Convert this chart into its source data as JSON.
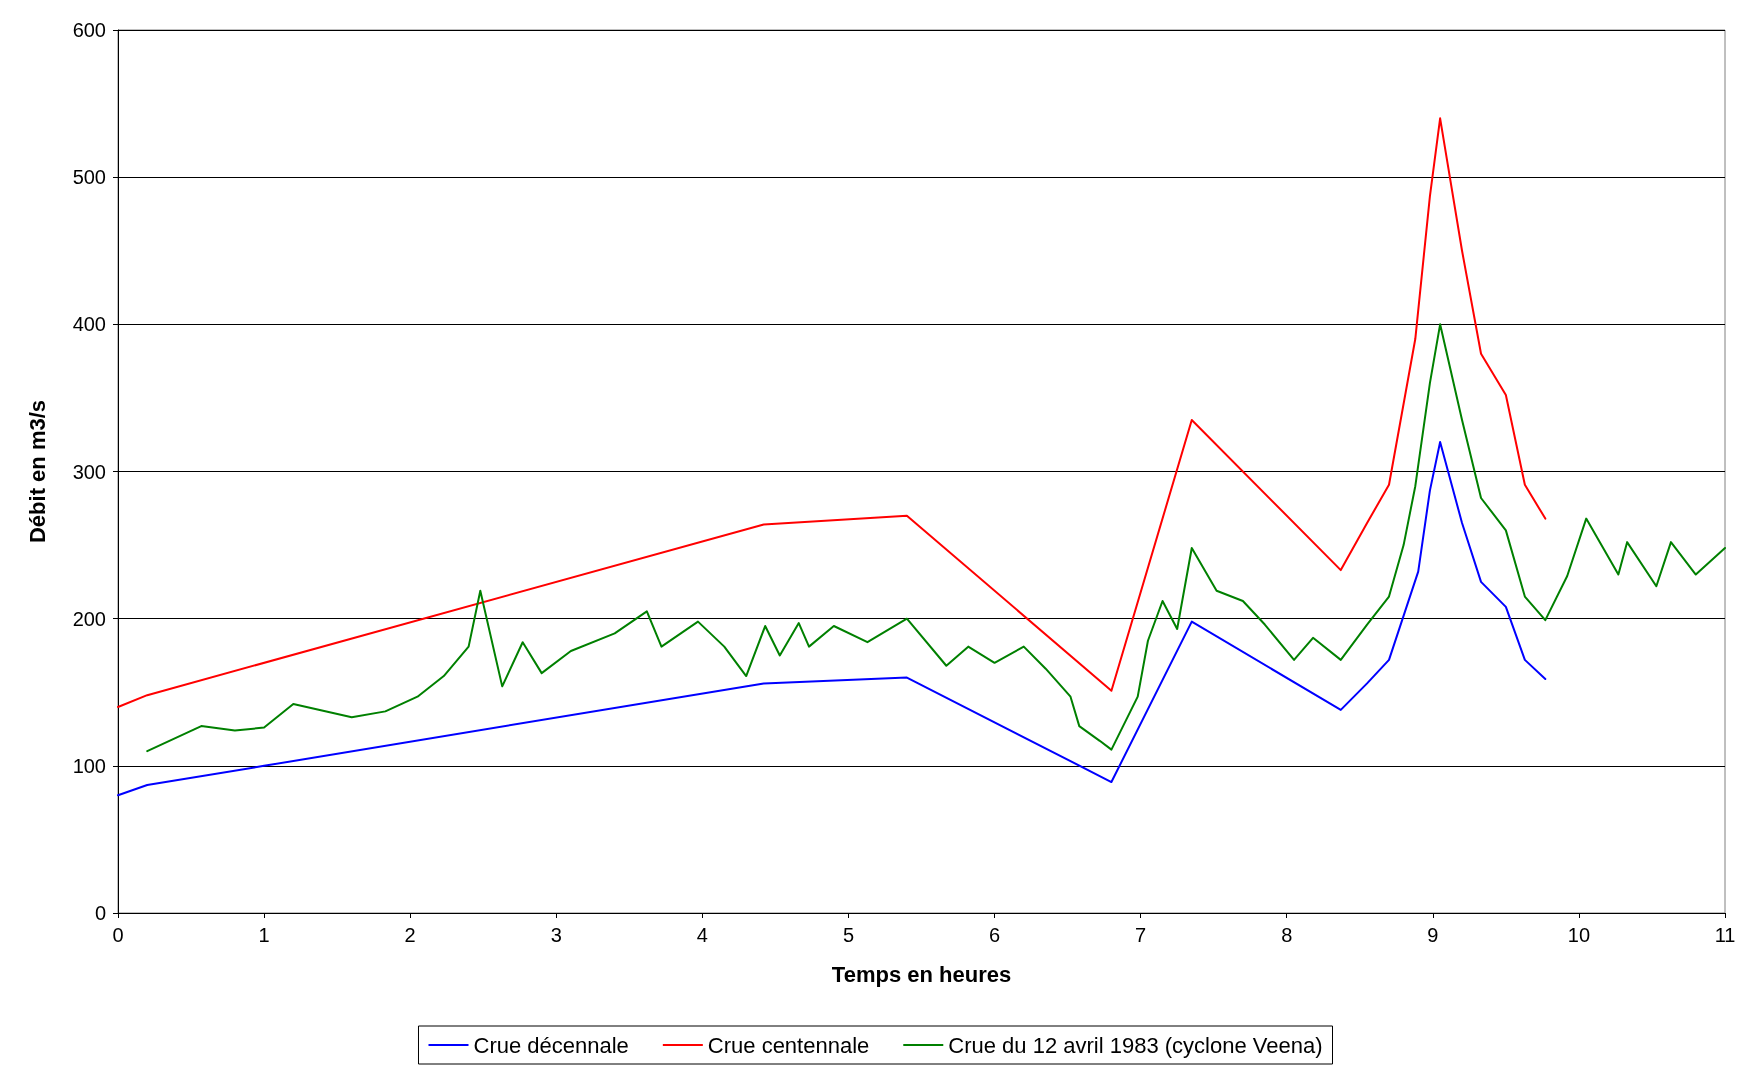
{
  "chart_data": {
    "type": "line",
    "xlabel": "Temps en heures",
    "ylabel": "Débit en m3/s",
    "xlim": [
      0,
      11
    ],
    "xticks": [
      0,
      1,
      2,
      3,
      4,
      5,
      6,
      7,
      8,
      9,
      10,
      11
    ],
    "ylim": [
      0,
      600
    ],
    "yticks": [
      0,
      100,
      200,
      300,
      400,
      500,
      600
    ],
    "grid": "y",
    "legend": "bottom",
    "marker": "none",
    "line_style": "solid",
    "series": [
      {
        "name": "Crue décennale",
        "color": "#0000ff",
        "x": [
          0,
          0.2,
          1,
          4.42,
          5.4,
          6.8,
          7.35,
          8.37,
          8.55,
          8.7,
          8.9,
          8.98,
          9.05,
          9.2,
          9.33,
          9.5,
          9.63,
          9.77
        ],
        "values": [
          80,
          87,
          100,
          156,
          160,
          89,
          198,
          138,
          156,
          172,
          232,
          287,
          320,
          265,
          225,
          208,
          172,
          159
        ]
      },
      {
        "name": "Crue centennale",
        "color": "#ff0000",
        "x": [
          0,
          0.2,
          4.42,
          5.4,
          6.8,
          7.35,
          8.37,
          8.55,
          8.7,
          8.88,
          8.98,
          9.05,
          9.2,
          9.33,
          9.5,
          9.63,
          9.77
        ],
        "values": [
          140,
          148,
          264,
          270,
          151,
          335,
          233,
          265,
          291,
          390,
          487,
          540,
          450,
          380,
          352,
          291,
          268
        ]
      },
      {
        "name": "Crue du 12 avril 1983 (cyclone Veena)",
        "color": "#008000",
        "x": [
          0.2,
          0.57,
          0.8,
          1,
          1.2,
          1.6,
          1.83,
          2.05,
          2.23,
          2.4,
          2.48,
          2.63,
          2.77,
          2.9,
          3.1,
          3.4,
          3.62,
          3.72,
          3.97,
          4.15,
          4.3,
          4.43,
          4.53,
          4.66,
          4.73,
          4.9,
          5.13,
          5.4,
          5.67,
          5.82,
          6,
          6.2,
          6.35,
          6.52,
          6.58,
          6.72,
          6.8,
          6.98,
          7.05,
          7.15,
          7.25,
          7.35,
          7.52,
          7.7,
          7.85,
          8.05,
          8.18,
          8.37,
          8.55,
          8.7,
          8.8,
          8.88,
          8.98,
          9.05,
          9.2,
          9.33,
          9.5,
          9.63,
          9.77,
          9.92,
          10.05,
          10.27,
          10.33,
          10.53,
          10.63,
          10.8,
          11
        ],
        "values": [
          110,
          127,
          124,
          126,
          142,
          133,
          137,
          147,
          161,
          181,
          219,
          154,
          184,
          163,
          178,
          190,
          205,
          181,
          198,
          181,
          161,
          195,
          175,
          197,
          181,
          195,
          184,
          200,
          168,
          181,
          170,
          181,
          166,
          147,
          127,
          117,
          111,
          147,
          185,
          212,
          193,
          248,
          219,
          212,
          196,
          172,
          187,
          172,
          196,
          215,
          250,
          290,
          360,
          400,
          335,
          282,
          260,
          215,
          199,
          229,
          268,
          230,
          252,
          222,
          252,
          230,
          248
        ]
      }
    ]
  }
}
